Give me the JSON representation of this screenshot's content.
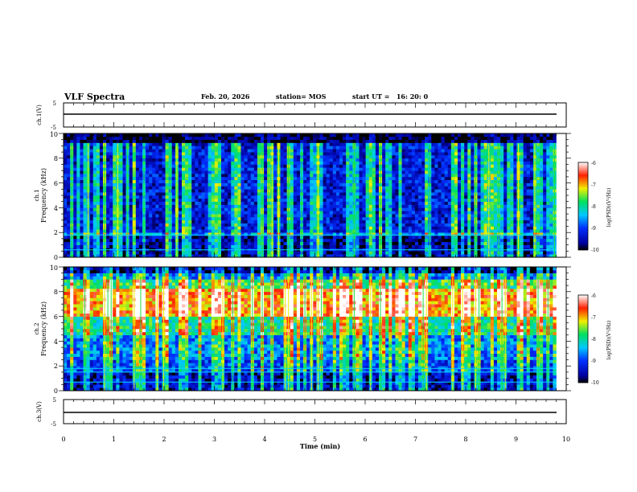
{
  "header": {
    "title": "VLF Spectra",
    "date": "Feb. 20, 2026",
    "station": "station= MOS",
    "start_ut": "start UT =   16: 20: 0"
  },
  "colors": {
    "spec_black": "#000000",
    "spec_blue": "#0022dd",
    "spec_cyan": "#00c8ff",
    "spec_green": "#10dc30",
    "spec_yellow": "#f0f000",
    "spec_red": "#ff2000"
  },
  "chart_data": [
    {
      "type": "line",
      "name": "ch1-voltage",
      "ylabel": "ch.1(V)",
      "ylim": [
        -5,
        5
      ],
      "y_ticks": [
        "5",
        "-5"
      ],
      "x": [
        0,
        10
      ],
      "values": [
        -1.5,
        -1.5
      ]
    },
    {
      "type": "heatmap",
      "name": "ch1-spectrogram",
      "ylabel_channel": "ch.1",
      "ylabel": "Frequency (kHz)",
      "ylim": [
        0,
        10
      ],
      "y_ticks": [
        "0",
        "2",
        "4",
        "6",
        "8",
        "10"
      ],
      "xlim": [
        0,
        9.8
      ],
      "colorbar": {
        "label": "log(PSD)(V²/Hz)",
        "range": [
          -10,
          -6
        ],
        "ticks": [
          "-6",
          "-7",
          "-8",
          "-9",
          "-10"
        ]
      },
      "bands_khz": [
        {
          "from": 0.0,
          "to": 1.7,
          "level": -9.6
        },
        {
          "from": 1.7,
          "to": 1.9,
          "level": -8.6
        },
        {
          "from": 1.9,
          "to": 9.2,
          "level": -9.3
        },
        {
          "from": 9.2,
          "to": 10.0,
          "level": -10.0
        }
      ],
      "line_freqs_khz": [
        0.6,
        1.8
      ]
    },
    {
      "type": "heatmap",
      "name": "ch2-spectrogram",
      "ylabel_channel": "ch.2",
      "ylabel": "Frequency (kHz)",
      "ylim": [
        0,
        10
      ],
      "y_ticks": [
        "0",
        "2",
        "4",
        "6",
        "8",
        "10"
      ],
      "xlim": [
        0,
        9.8
      ],
      "colorbar": {
        "label": "log(PSD)(V²/Hz)",
        "range": [
          -10,
          -6
        ],
        "ticks": [
          "-6",
          "-7",
          "-8",
          "-9",
          "-10"
        ]
      },
      "bands_khz": [
        {
          "from": 0.0,
          "to": 1.6,
          "level": -9.5
        },
        {
          "from": 1.6,
          "to": 2.5,
          "level": -9.0
        },
        {
          "from": 2.5,
          "to": 4.5,
          "level": -8.7
        },
        {
          "from": 4.5,
          "to": 6.0,
          "level": -8.0
        },
        {
          "from": 6.0,
          "to": 8.2,
          "level": -6.9
        },
        {
          "from": 8.2,
          "to": 9.0,
          "level": -7.8
        },
        {
          "from": 9.0,
          "to": 9.6,
          "level": -8.8
        },
        {
          "from": 9.6,
          "to": 10.0,
          "level": -9.8
        }
      ],
      "line_freqs_khz": [
        0.7,
        1.5,
        1.8
      ]
    },
    {
      "type": "line",
      "name": "ch3-voltage",
      "ylabel": "ch.3(V)",
      "ylim": [
        -5,
        5
      ],
      "y_ticks": [
        "5",
        "-5"
      ],
      "x": [
        0,
        10
      ],
      "values": [
        -1.8,
        -1.8
      ]
    }
  ],
  "x_axis": {
    "label": "Time (min)",
    "xlim": [
      0,
      10
    ],
    "ticks": [
      "0",
      "1",
      "2",
      "3",
      "4",
      "5",
      "6",
      "7",
      "8",
      "9",
      "10"
    ]
  }
}
